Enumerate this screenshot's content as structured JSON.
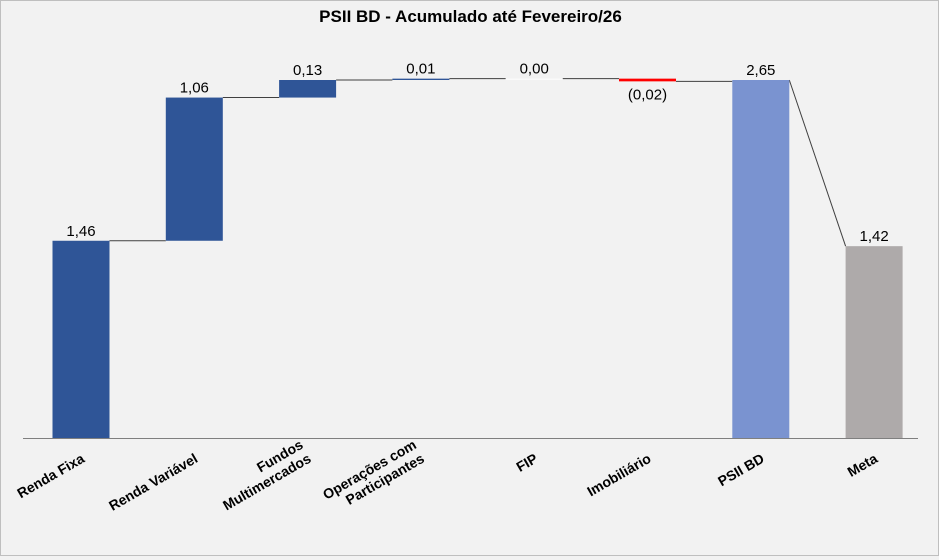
{
  "chart_data": {
    "type": "bar",
    "subtype": "waterfall",
    "title": "PSII BD - Acumulado  até Fevereiro/26",
    "categories": [
      "Renda Fixa",
      "Renda Variável",
      "Fundos Multimercados",
      "Operações com Participantes",
      "FIP",
      "Imobiliário",
      "PSII BD",
      "Meta"
    ],
    "category_lines": [
      [
        "Renda Fixa"
      ],
      [
        "Renda Variável"
      ],
      [
        "Fundos",
        "Multimercados"
      ],
      [
        "Operações com",
        "Participantes"
      ],
      [
        "FIP"
      ],
      [
        "Imobiliário"
      ],
      [
        "PSII BD"
      ],
      [
        "Meta"
      ]
    ],
    "values": [
      1.46,
      1.06,
      0.13,
      0.01,
      0.0,
      -0.02,
      2.65,
      1.42
    ],
    "value_labels": [
      "1,46",
      "1,06",
      "0,13",
      "0,01",
      "0,00",
      "(0,02)",
      "2,65",
      "1,42"
    ],
    "bar_kind": [
      "increment",
      "increment",
      "increment",
      "increment",
      "increment",
      "decrement",
      "total",
      "total"
    ],
    "colors": {
      "increment": "#2f5597",
      "decrement": "#ff0000",
      "total": "#7a93d0",
      "meta": "#aeaaaa",
      "zero_change": "#ffffff",
      "connector": "#404040"
    },
    "ylim": [
      0,
      2.65
    ],
    "grid": false,
    "legend": "none",
    "xlabel": "",
    "ylabel": ""
  }
}
